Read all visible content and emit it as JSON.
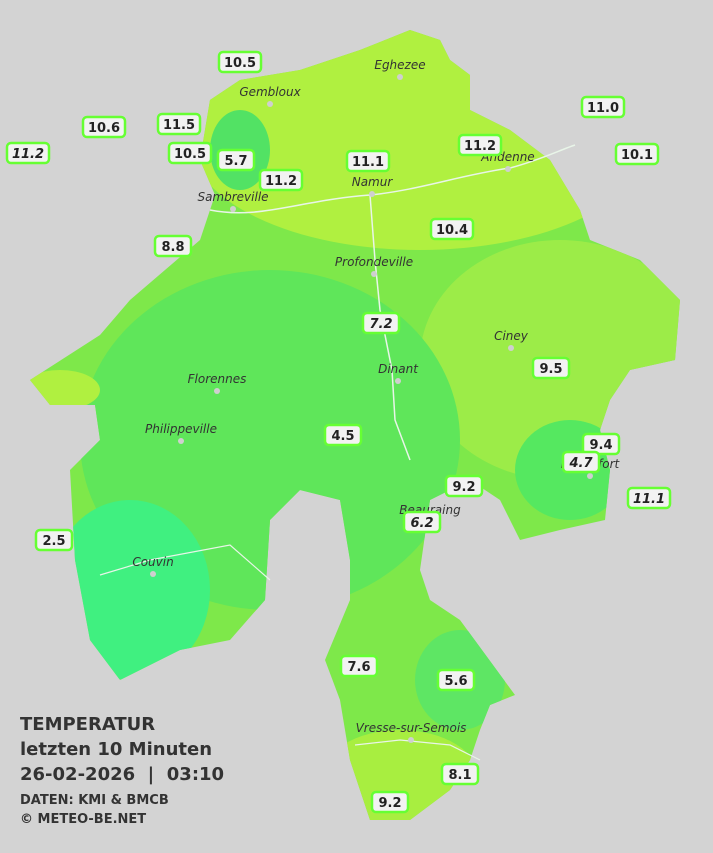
{
  "header": {
    "title": "TEMPERATUR",
    "subtitle": "letzten 10 Minuten",
    "datetime": "26-02-2026  |  03:10",
    "source": "DATEN: KMI & BMCB",
    "copyright": "© METEO-BE.NET"
  },
  "cities": [
    "Eghezee",
    "Gembloux",
    "Andenne",
    "Namur",
    "Sambreville",
    "Profondeville",
    "Ciney",
    "Dinant",
    "Florennes",
    "Philippeville",
    "Beauraing",
    "Rochefort",
    "Couvin",
    "Vresse-sur-Semois"
  ],
  "stations": [
    {
      "value": "10.5",
      "italic": false
    },
    {
      "value": "10.6",
      "italic": false
    },
    {
      "value": "11.5",
      "italic": false
    },
    {
      "value": "11.2",
      "italic": true
    },
    {
      "value": "10.5",
      "italic": false
    },
    {
      "value": "5.7",
      "italic": false
    },
    {
      "value": "11.2",
      "italic": false
    },
    {
      "value": "11.1",
      "italic": false
    },
    {
      "value": "11.2",
      "italic": false
    },
    {
      "value": "11.0",
      "italic": false
    },
    {
      "value": "10.1",
      "italic": false
    },
    {
      "value": "10.4",
      "italic": false
    },
    {
      "value": "8.8",
      "italic": false
    },
    {
      "value": "7.2",
      "italic": true
    },
    {
      "value": "9.5",
      "italic": false
    },
    {
      "value": "4.5",
      "italic": false
    },
    {
      "value": "9.4",
      "italic": false
    },
    {
      "value": "4.7",
      "italic": true
    },
    {
      "value": "9.2",
      "italic": false
    },
    {
      "value": "11.1",
      "italic": true
    },
    {
      "value": "6.2",
      "italic": true
    },
    {
      "value": "2.5",
      "italic": false
    },
    {
      "value": "7.6",
      "italic": false
    },
    {
      "value": "5.6",
      "italic": false
    },
    {
      "value": "8.1",
      "italic": false
    },
    {
      "value": "9.2",
      "italic": false
    }
  ]
}
